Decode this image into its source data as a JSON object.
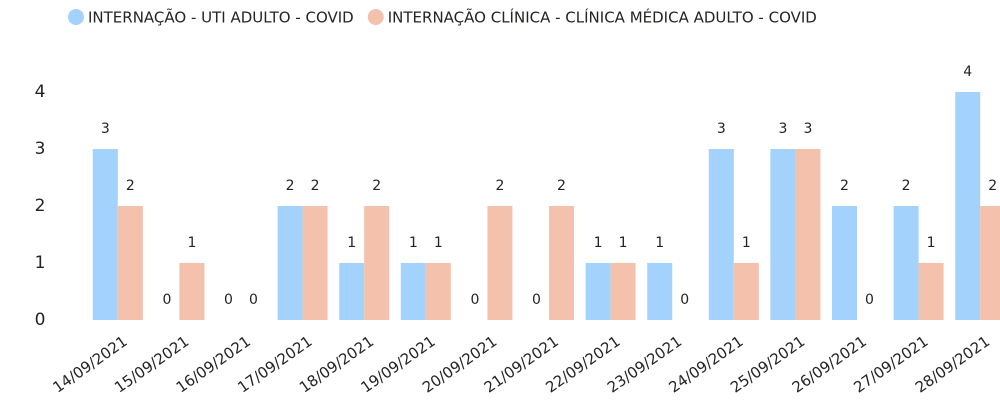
{
  "chart_data": {
    "type": "bar",
    "categories": [
      "14/09/2021",
      "15/09/2021",
      "16/09/2021",
      "17/09/2021",
      "18/09/2021",
      "19/09/2021",
      "20/09/2021",
      "21/09/2021",
      "22/09/2021",
      "23/09/2021",
      "24/09/2021",
      "25/09/2021",
      "26/09/2021",
      "27/09/2021",
      "28/09/2021"
    ],
    "series": [
      {
        "name": "INTERNAÇÃO - UTI ADULTO - COVID",
        "color": "#a3d2fd",
        "values": [
          3,
          0,
          0,
          2,
          1,
          1,
          0,
          0,
          1,
          1,
          3,
          3,
          2,
          2,
          4
        ]
      },
      {
        "name": "INTERNAÇÃO CLÍNICA - CLÍNICA MÉDICA ADULTO - COVID",
        "color": "#f4c1ad",
        "values": [
          2,
          1,
          0,
          2,
          2,
          1,
          2,
          2,
          1,
          0,
          1,
          3,
          0,
          1,
          2
        ]
      }
    ],
    "ylim": [
      0,
      4
    ],
    "yticks": [
      0,
      1,
      2,
      3,
      4
    ],
    "grid": false
  }
}
